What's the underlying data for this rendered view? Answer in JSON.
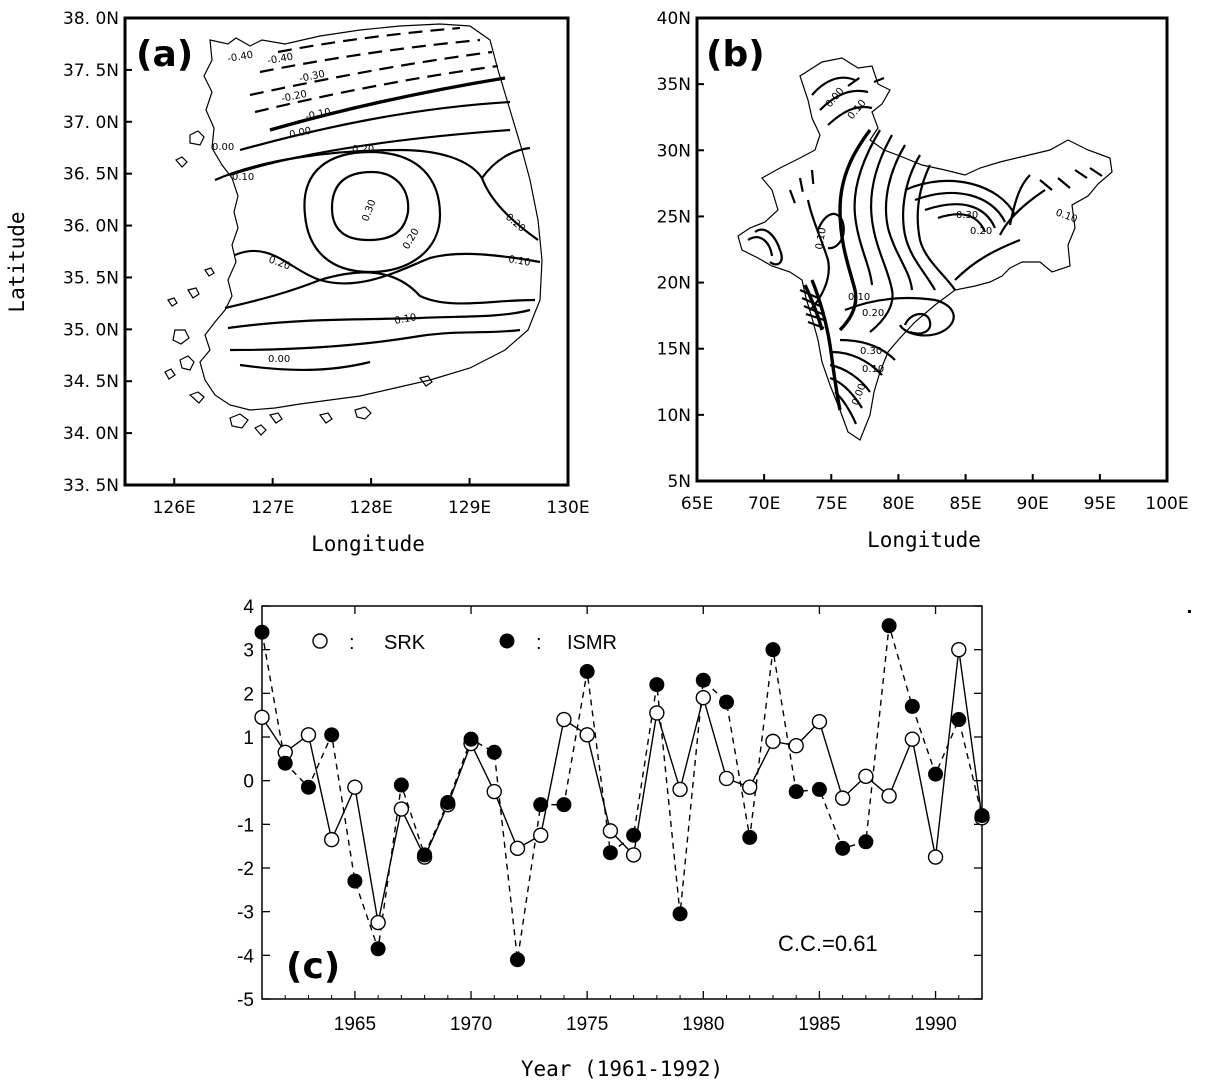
{
  "chart_data": [
    {
      "id": "a",
      "type": "contour",
      "panel_label": "(a)",
      "xlabel": "Longitude",
      "ylabel": "Latitude",
      "xlim": [
        125.5,
        130
      ],
      "ylim": [
        33.5,
        38.0
      ],
      "x_ticks": [
        126,
        127,
        128,
        129,
        130
      ],
      "x_tick_labels": [
        "126E",
        "127E",
        "128E",
        "129E",
        "130E"
      ],
      "y_ticks": [
        33.5,
        34.0,
        34.5,
        35.0,
        35.5,
        36.0,
        36.5,
        37.0,
        37.5,
        38.0
      ],
      "y_tick_labels": [
        "33. 5N",
        "34. 0N",
        "34. 5N",
        "35. 0N",
        "35. 5N",
        "36. 0N",
        "36. 5N",
        "37. 0N",
        "37. 5N",
        "38. 0N"
      ],
      "contour_labels": [
        "-0.40",
        "-0.40",
        "-0.30",
        "-0.20",
        "-0.10",
        "0.00",
        "0.00",
        "0.10",
        "0.20",
        "0.30",
        "0.20",
        "0.20",
        "0.20",
        "0.10",
        "0.10",
        "0.00"
      ]
    },
    {
      "id": "b",
      "type": "contour",
      "panel_label": "(b)",
      "xlabel": "Longitude",
      "ylabel": "",
      "xlim": [
        65,
        100
      ],
      "ylim": [
        5,
        40
      ],
      "x_ticks": [
        65,
        70,
        75,
        80,
        85,
        90,
        95,
        100
      ],
      "x_tick_labels": [
        "65E",
        "70E",
        "75E",
        "80E",
        "85E",
        "90E",
        "95E",
        "100E"
      ],
      "y_ticks": [
        5,
        10,
        15,
        20,
        25,
        30,
        35,
        40
      ],
      "y_tick_labels": [
        "5N",
        "10N",
        "15N",
        "20N",
        "25N",
        "30N",
        "35N",
        "40N"
      ],
      "contour_labels": [
        "0.00",
        "0.10",
        "0.30",
        "0.20",
        "0.10",
        "0.10",
        "0.10",
        "0.20",
        "0.30",
        "0.10",
        "0.00"
      ]
    },
    {
      "id": "c",
      "type": "line",
      "panel_label": "(c)",
      "xlabel": "Year (1961-1992)",
      "ylabel": "",
      "xlim": [
        1961,
        1992
      ],
      "ylim": [
        -5,
        4
      ],
      "x_ticks": [
        1965,
        1970,
        1975,
        1980,
        1985,
        1990
      ],
      "y_ticks": [
        -5,
        -4,
        -3,
        -2,
        -1,
        0,
        1,
        2,
        3,
        4
      ],
      "annotation": "C.C.=0.61",
      "x": [
        1961,
        1962,
        1963,
        1964,
        1965,
        1966,
        1967,
        1968,
        1969,
        1970,
        1971,
        1972,
        1973,
        1974,
        1975,
        1976,
        1977,
        1978,
        1979,
        1980,
        1981,
        1982,
        1983,
        1984,
        1985,
        1986,
        1987,
        1988,
        1989,
        1990,
        1991,
        1992
      ],
      "series": [
        {
          "name": "SRK",
          "marker": "open-circle",
          "line": "solid",
          "values": [
            1.45,
            0.65,
            1.05,
            -1.35,
            -0.15,
            -3.25,
            -0.65,
            -1.75,
            -0.55,
            0.85,
            -0.25,
            -1.55,
            -1.25,
            1.4,
            1.05,
            -1.15,
            -1.7,
            1.55,
            -0.2,
            1.9,
            0.05,
            -0.15,
            0.9,
            0.8,
            1.35,
            -0.4,
            0.1,
            -0.35,
            0.95,
            -1.75,
            3.0,
            -0.85
          ]
        },
        {
          "name": "ISMR",
          "marker": "filled-circle",
          "line": "dashed",
          "values": [
            3.4,
            0.4,
            -0.15,
            1.05,
            -2.3,
            -3.85,
            -0.1,
            -1.7,
            -0.5,
            0.95,
            0.65,
            -4.1,
            -0.55,
            -0.55,
            2.5,
            -1.65,
            -1.25,
            2.2,
            -3.05,
            2.3,
            1.8,
            -1.3,
            3.0,
            -0.25,
            -0.2,
            -1.55,
            -1.4,
            3.55,
            1.7,
            0.15,
            1.4,
            -0.8
          ]
        }
      ]
    }
  ],
  "legend": {
    "srk_sep": ":",
    "srk_label": "SRK",
    "ismr_sep": ":",
    "ismr_label": "ISMR"
  }
}
